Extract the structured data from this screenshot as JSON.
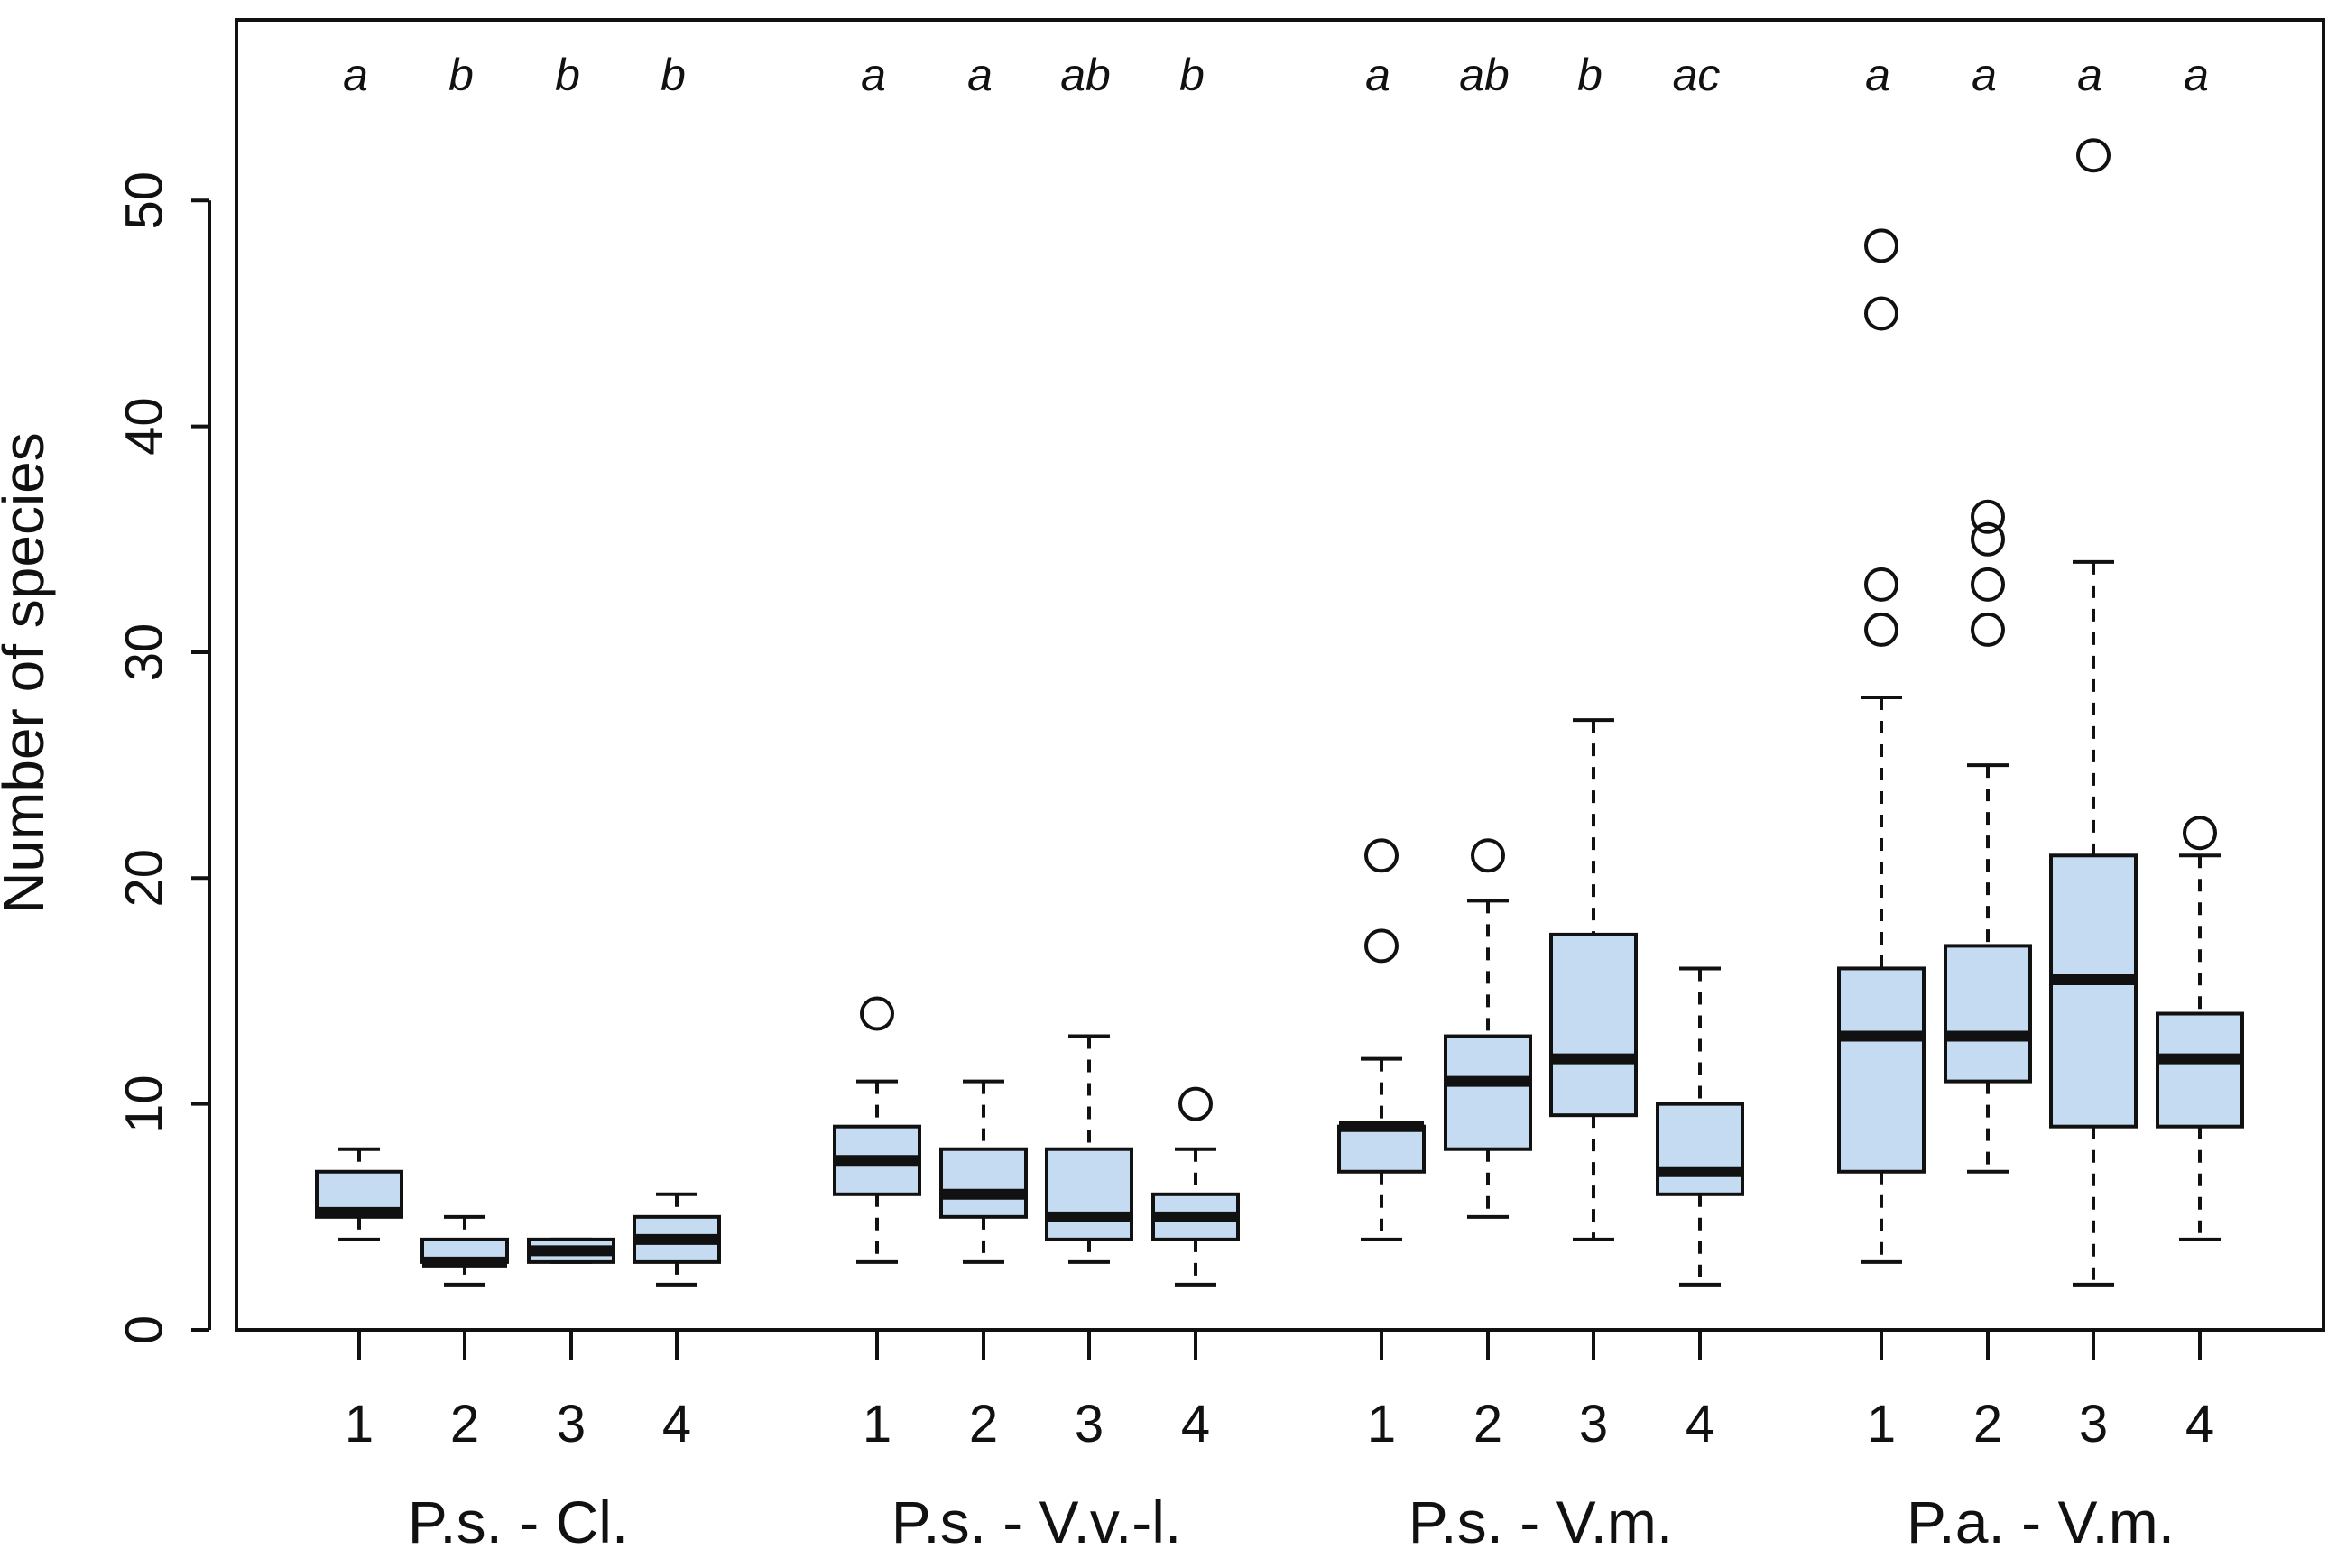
{
  "chart_data": {
    "type": "boxplot",
    "title": "",
    "ylabel": "Number of species",
    "xlabel": "",
    "ylim": [
      0,
      58
    ],
    "yticks": [
      0,
      10,
      20,
      30,
      40,
      50
    ],
    "grid": false,
    "box_fill": "#c5dbf1",
    "stroke_color": "#111111",
    "groups": [
      {
        "label": "P.s. - Cl.",
        "boxes": [
          {
            "category": "1",
            "letter": "a",
            "whisker_low": 4,
            "q1": 5,
            "median": 5.2,
            "q3": 7,
            "whisker_high": 8,
            "outliers": []
          },
          {
            "category": "2",
            "letter": "b",
            "whisker_low": 2,
            "q1": 3,
            "median": 3,
            "q3": 4,
            "whisker_high": 5,
            "outliers": []
          },
          {
            "category": "3",
            "letter": "b",
            "whisker_low": 3,
            "q1": 3,
            "median": 3.5,
            "q3": 4,
            "whisker_high": 4,
            "outliers": []
          },
          {
            "category": "4",
            "letter": "b",
            "whisker_low": 2,
            "q1": 3,
            "median": 4,
            "q3": 5,
            "whisker_high": 6,
            "outliers": []
          }
        ]
      },
      {
        "label": "P.s. - V.v.-l.",
        "boxes": [
          {
            "category": "1",
            "letter": "a",
            "whisker_low": 3,
            "q1": 6,
            "median": 7.5,
            "q3": 9,
            "whisker_high": 11,
            "outliers": [
              14
            ]
          },
          {
            "category": "2",
            "letter": "a",
            "whisker_low": 3,
            "q1": 5,
            "median": 6,
            "q3": 8,
            "whisker_high": 11,
            "outliers": []
          },
          {
            "category": "3",
            "letter": "ab",
            "whisker_low": 3,
            "q1": 4,
            "median": 5,
            "q3": 8,
            "whisker_high": 13,
            "outliers": []
          },
          {
            "category": "4",
            "letter": "b",
            "whisker_low": 2,
            "q1": 4,
            "median": 5,
            "q3": 6,
            "whisker_high": 8,
            "outliers": [
              10
            ]
          }
        ]
      },
      {
        "label": "P.s. - V.m.",
        "boxes": [
          {
            "category": "1",
            "letter": "a",
            "whisker_low": 4,
            "q1": 7,
            "median": 9,
            "q3": 9,
            "whisker_high": 12,
            "outliers": [
              17,
              21
            ]
          },
          {
            "category": "2",
            "letter": "ab",
            "whisker_low": 5,
            "q1": 8,
            "median": 11,
            "q3": 13,
            "whisker_high": 19,
            "outliers": [
              21
            ]
          },
          {
            "category": "3",
            "letter": "b",
            "whisker_low": 4,
            "q1": 9.5,
            "median": 12,
            "q3": 17.5,
            "whisker_high": 27,
            "outliers": []
          },
          {
            "category": "4",
            "letter": "ac",
            "whisker_low": 2,
            "q1": 6,
            "median": 7,
            "q3": 10,
            "whisker_high": 16,
            "outliers": []
          }
        ]
      },
      {
        "label": "P.a. - V.m.",
        "boxes": [
          {
            "category": "1",
            "letter": "a",
            "whisker_low": 3,
            "q1": 7,
            "median": 13,
            "q3": 16,
            "whisker_high": 28,
            "outliers": [
              31,
              33,
              45,
              48
            ]
          },
          {
            "category": "2",
            "letter": "a",
            "whisker_low": 7,
            "q1": 11,
            "median": 13,
            "q3": 17,
            "whisker_high": 25,
            "outliers": [
              31,
              33,
              35,
              36
            ]
          },
          {
            "category": "3",
            "letter": "a",
            "whisker_low": 2,
            "q1": 9,
            "median": 15.5,
            "q3": 21,
            "whisker_high": 34,
            "outliers": [
              52
            ]
          },
          {
            "category": "4",
            "letter": "a",
            "whisker_low": 4,
            "q1": 9,
            "median": 12,
            "q3": 14,
            "whisker_high": 21,
            "outliers": [
              22
            ]
          }
        ]
      }
    ]
  }
}
